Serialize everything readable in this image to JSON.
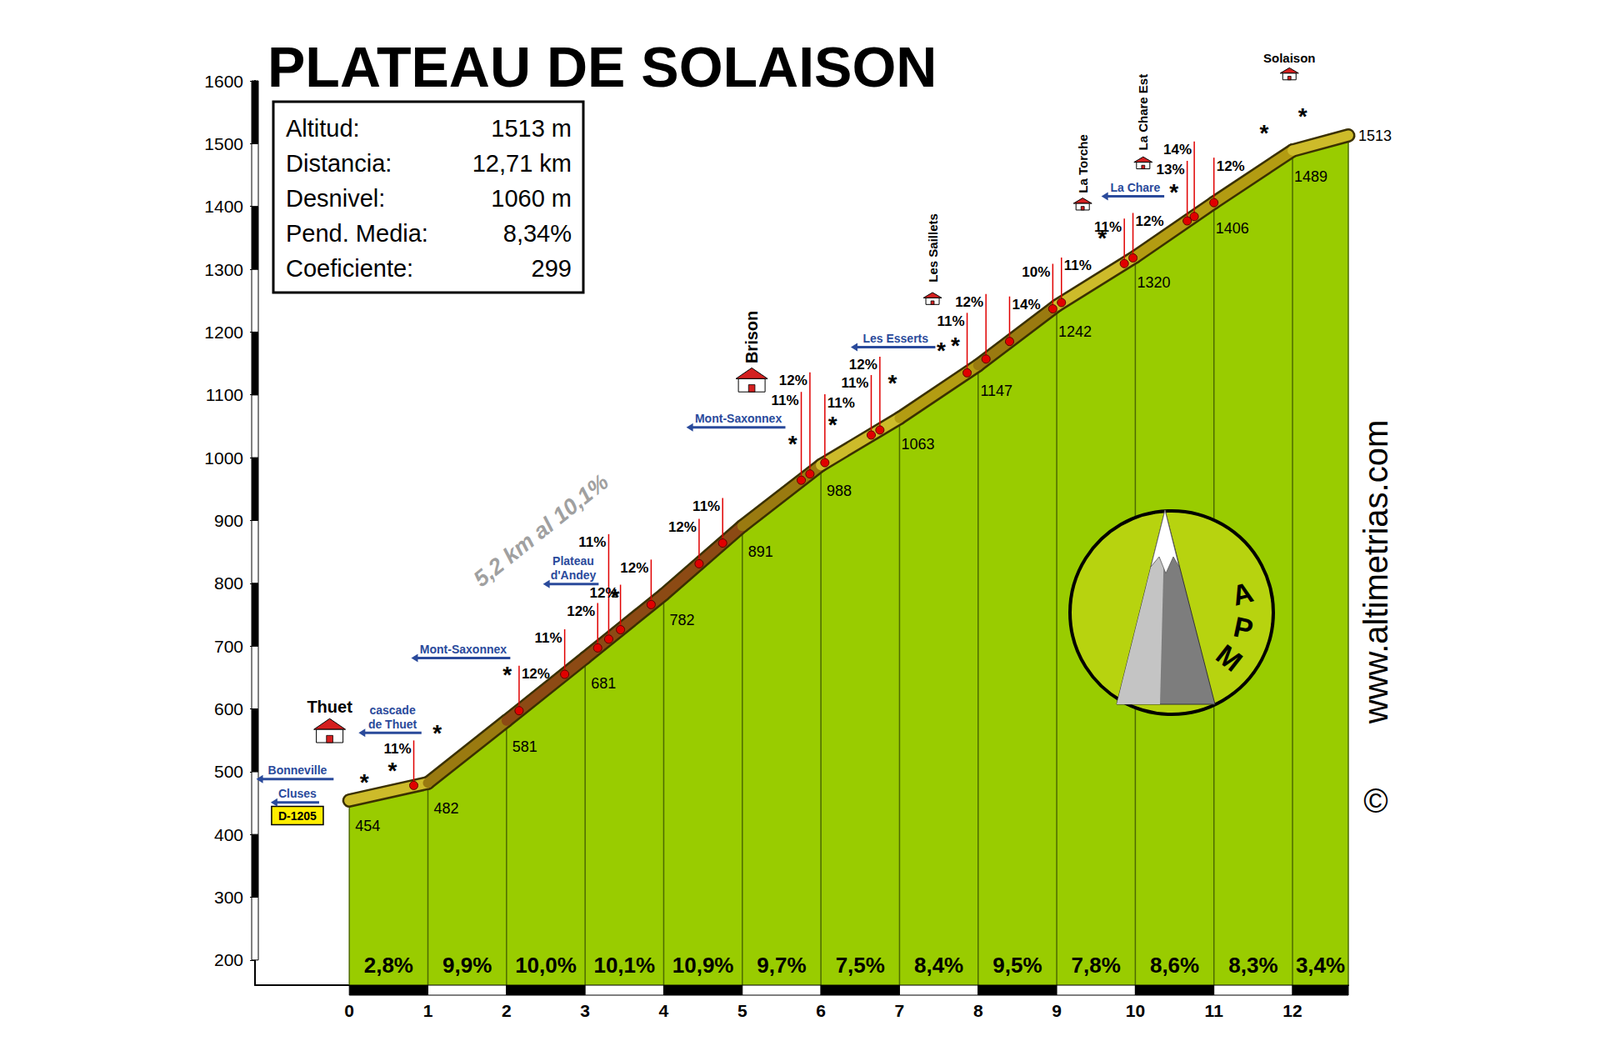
{
  "chart_data": {
    "type": "area",
    "title": "PLATEAU DE SOLAISON",
    "x": [
      0,
      1,
      2,
      3,
      4,
      5,
      6,
      7,
      8,
      9,
      10,
      11,
      12,
      12.71
    ],
    "values": [
      454,
      482,
      581,
      681,
      782,
      891,
      988,
      1063,
      1147,
      1242,
      1320,
      1406,
      1489,
      1513
    ],
    "color": "#99cc00",
    "data_labels": true,
    "grid": false,
    "xlim": [
      -1.2,
      12.71
    ],
    "xticks": [
      0,
      1,
      2,
      3,
      4,
      5,
      6,
      7,
      8,
      9,
      10,
      11,
      12
    ],
    "ylim": [
      160,
      1600
    ],
    "yticks": [
      200,
      300,
      400,
      500,
      600,
      700,
      800,
      900,
      1000,
      1100,
      1200,
      1300,
      1400,
      1500,
      1600
    ],
    "grades": {
      "values": [
        2.8,
        9.9,
        10.0,
        10.1,
        10.9,
        9.7,
        7.5,
        8.4,
        9.5,
        7.8,
        8.6,
        8.3,
        3.4
      ],
      "value_labels": [
        "2,8%",
        "9,9%",
        "10,0%",
        "10,1%",
        "10,9%",
        "9,7%",
        "7,5%",
        "8,4%",
        "9,5%",
        "7,8%",
        "8,6%",
        "8,3%",
        "3,4%"
      ]
    },
    "info_box": [
      [
        "Altitud:",
        "1513 m"
      ],
      [
        "Distancia:",
        "12,71 km"
      ],
      [
        "Desnivel:",
        "1060 m"
      ],
      [
        "Pend. Media:",
        "8,34%"
      ],
      [
        "Coeficiente:",
        "299"
      ]
    ],
    "annotations": [
      {
        "x": 2.44,
        "y": 884,
        "label": "5,2 km al 10,1%"
      }
    ],
    "steep_points": [
      {
        "x": 0.82,
        "y": 478,
        "label": "11%"
      },
      {
        "x": 2.16,
        "y": 597,
        "label": "12%"
      },
      {
        "x": 2.74,
        "y": 655,
        "label": "11%"
      },
      {
        "x": 3.16,
        "y": 697,
        "label": "12%"
      },
      {
        "x": 3.3,
        "y": 711,
        "label": "11%"
      },
      {
        "x": 3.45,
        "y": 726,
        "label": "12%"
      },
      {
        "x": 3.84,
        "y": 766,
        "label": "12%"
      },
      {
        "x": 4.45,
        "y": 831,
        "label": "12%"
      },
      {
        "x": 4.75,
        "y": 864,
        "label": "11%"
      },
      {
        "x": 5.75,
        "y": 964,
        "label": "11%"
      },
      {
        "x": 5.86,
        "y": 974,
        "label": "12%"
      },
      {
        "x": 6.05,
        "y": 992,
        "label": "11%"
      },
      {
        "x": 6.64,
        "y": 1036,
        "label": "11%"
      },
      {
        "x": 6.75,
        "y": 1044,
        "label": "12%"
      },
      {
        "x": 7.86,
        "y": 1135,
        "label": "11%"
      },
      {
        "x": 8.1,
        "y": 1157,
        "label": "12%"
      },
      {
        "x": 8.4,
        "y": 1185,
        "label": "14%"
      },
      {
        "x": 8.95,
        "y": 1237,
        "label": "10%"
      },
      {
        "x": 9.06,
        "y": 1247,
        "label": "11%"
      },
      {
        "x": 9.86,
        "y": 1309,
        "label": "11%"
      },
      {
        "x": 9.97,
        "y": 1318,
        "label": "12%"
      },
      {
        "x": 10.66,
        "y": 1377,
        "label": "13%"
      },
      {
        "x": 10.75,
        "y": 1384,
        "label": "14%"
      },
      {
        "x": 11.0,
        "y": 1406,
        "label": "12%"
      }
    ],
    "places": [
      {
        "label": "Thuet",
        "x": -0.25,
        "y": 603,
        "orientation": "horizontal",
        "marker": "village"
      },
      {
        "label": "Brison",
        "x": 5.12,
        "y": 1192,
        "orientation": "vertical",
        "marker": "village"
      },
      {
        "label": "Les Saillets",
        "x": 7.42,
        "y": 1334,
        "orientation": "vertical",
        "marker": "hamlet"
      },
      {
        "label": "La Torche",
        "x": 9.33,
        "y": 1468,
        "orientation": "vertical",
        "marker": "hamlet"
      },
      {
        "label": "La Chare Est",
        "x": 10.1,
        "y": 1550,
        "orientation": "vertical",
        "marker": "hamlet"
      },
      {
        "label": "Solaison",
        "x": 11.96,
        "y": 1636,
        "orientation": "horizontal",
        "marker": "hamlet"
      }
    ],
    "road_signs": [
      {
        "x": -0.66,
        "y": 502,
        "label": "Bonneville"
      },
      {
        "x": -0.66,
        "y": 465,
        "label": "Cluses"
      },
      {
        "x": 0.55,
        "y": 587,
        "label": "cascade de Thuet"
      },
      {
        "x": 1.45,
        "y": 695,
        "label": "Mont-Saxonnex"
      },
      {
        "x": 2.85,
        "y": 824,
        "label": "Plateau d'Andey"
      },
      {
        "x": 4.95,
        "y": 1062,
        "label": "Mont-Saxonnex"
      },
      {
        "x": 6.95,
        "y": 1190,
        "label": "Les Esserts"
      },
      {
        "x": 10.0,
        "y": 1430,
        "label": "La Chare"
      }
    ],
    "road_number": {
      "x": -0.66,
      "y": 430,
      "label": "D-1205"
    },
    "stars": {
      "label": "*",
      "points": [
        [
          0.19,
          491
        ],
        [
          0.55,
          510
        ],
        [
          1.12,
          570
        ],
        [
          2.01,
          663
        ],
        [
          3.38,
          786
        ],
        [
          5.64,
          1030
        ],
        [
          6.15,
          1061
        ],
        [
          6.91,
          1127
        ],
        [
          7.53,
          1179
        ],
        [
          7.71,
          1187
        ],
        [
          9.58,
          1358
        ],
        [
          10.49,
          1431
        ],
        [
          11.64,
          1525
        ],
        [
          12.13,
          1551
        ]
      ]
    },
    "credits": {
      "copyright": "©",
      "url": "www.altimetrias.com",
      "logo": "APM"
    }
  }
}
